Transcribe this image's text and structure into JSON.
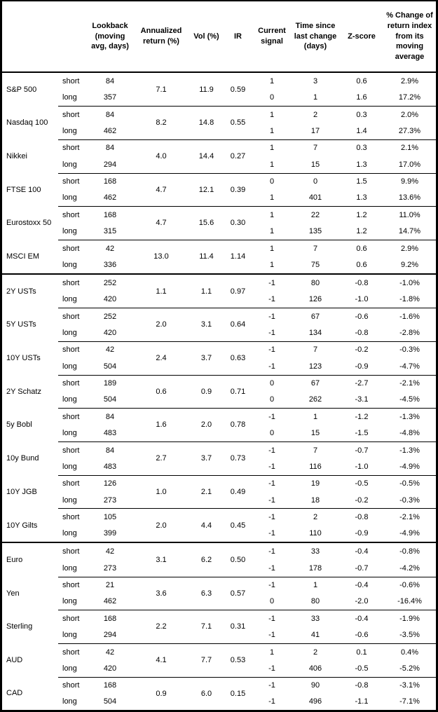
{
  "table": {
    "headers": {
      "asset": "",
      "period": "",
      "lookback": "Lookback (moving avg, days)",
      "ann_return": "Annualized return (%)",
      "vol": "Vol (%)",
      "ir": "IR",
      "signal": "Current signal",
      "time": "Time since last change (days)",
      "zscore": "Z-score",
      "chg": "% Change of return index from its moving average"
    },
    "period_labels": {
      "short": "short",
      "long": "long"
    },
    "groups": [
      {
        "name": "S&P 500",
        "section_start": false,
        "ann": "7.1",
        "vol": "11.9",
        "ir": "0.59",
        "short": {
          "lookback": "84",
          "signal": "1",
          "time": "3",
          "z": "0.6",
          "chg": "2.9%"
        },
        "long": {
          "lookback": "357",
          "signal": "0",
          "time": "1",
          "z": "1.6",
          "chg": "17.2%"
        }
      },
      {
        "name": "Nasdaq 100",
        "section_start": false,
        "ann": "8.2",
        "vol": "14.8",
        "ir": "0.55",
        "short": {
          "lookback": "84",
          "signal": "1",
          "time": "2",
          "z": "0.3",
          "chg": "2.0%"
        },
        "long": {
          "lookback": "462",
          "signal": "1",
          "time": "17",
          "z": "1.4",
          "chg": "27.3%"
        }
      },
      {
        "name": "Nikkei",
        "section_start": false,
        "ann": "4.0",
        "vol": "14.4",
        "ir": "0.27",
        "short": {
          "lookback": "84",
          "signal": "1",
          "time": "7",
          "z": "0.3",
          "chg": "2.1%"
        },
        "long": {
          "lookback": "294",
          "signal": "1",
          "time": "15",
          "z": "1.3",
          "chg": "17.0%"
        }
      },
      {
        "name": "FTSE 100",
        "section_start": false,
        "ann": "4.7",
        "vol": "12.1",
        "ir": "0.39",
        "short": {
          "lookback": "168",
          "signal": "0",
          "time": "0",
          "z": "1.5",
          "chg": "9.9%"
        },
        "long": {
          "lookback": "462",
          "signal": "1",
          "time": "401",
          "z": "1.3",
          "chg": "13.6%"
        }
      },
      {
        "name": "Eurostoxx 50",
        "section_start": false,
        "ann": "4.7",
        "vol": "15.6",
        "ir": "0.30",
        "short": {
          "lookback": "168",
          "signal": "1",
          "time": "22",
          "z": "1.2",
          "chg": "11.0%"
        },
        "long": {
          "lookback": "315",
          "signal": "1",
          "time": "135",
          "z": "1.2",
          "chg": "14.7%"
        }
      },
      {
        "name": "MSCI EM",
        "section_start": false,
        "ann": "13.0",
        "vol": "11.4",
        "ir": "1.14",
        "short": {
          "lookback": "42",
          "signal": "1",
          "time": "7",
          "z": "0.6",
          "chg": "2.9%"
        },
        "long": {
          "lookback": "336",
          "signal": "1",
          "time": "75",
          "z": "0.6",
          "chg": "9.2%"
        }
      },
      {
        "name": "2Y USTs",
        "section_start": true,
        "ann": "1.1",
        "vol": "1.1",
        "ir": "0.97",
        "short": {
          "lookback": "252",
          "signal": "-1",
          "time": "80",
          "z": "-0.8",
          "chg": "-1.0%"
        },
        "long": {
          "lookback": "420",
          "signal": "-1",
          "time": "126",
          "z": "-1.0",
          "chg": "-1.8%"
        }
      },
      {
        "name": "5Y USTs",
        "section_start": false,
        "ann": "2.0",
        "vol": "3.1",
        "ir": "0.64",
        "short": {
          "lookback": "252",
          "signal": "-1",
          "time": "67",
          "z": "-0.6",
          "chg": "-1.6%"
        },
        "long": {
          "lookback": "420",
          "signal": "-1",
          "time": "134",
          "z": "-0.8",
          "chg": "-2.8%"
        }
      },
      {
        "name": "10Y USTs",
        "section_start": false,
        "ann": "2.4",
        "vol": "3.7",
        "ir": "0.63",
        "short": {
          "lookback": "42",
          "signal": "-1",
          "time": "7",
          "z": "-0.2",
          "chg": "-0.3%"
        },
        "long": {
          "lookback": "504",
          "signal": "-1",
          "time": "123",
          "z": "-0.9",
          "chg": "-4.7%"
        }
      },
      {
        "name": "2Y Schatz",
        "section_start": false,
        "ann": "0.6",
        "vol": "0.9",
        "ir": "0.71",
        "short": {
          "lookback": "189",
          "signal": "0",
          "time": "67",
          "z": "-2.7",
          "chg": "-2.1%"
        },
        "long": {
          "lookback": "504",
          "signal": "0",
          "time": "262",
          "z": "-3.1",
          "chg": "-4.5%"
        }
      },
      {
        "name": "5y Bobl",
        "section_start": false,
        "ann": "1.6",
        "vol": "2.0",
        "ir": "0.78",
        "short": {
          "lookback": "84",
          "signal": "-1",
          "time": "1",
          "z": "-1.2",
          "chg": "-1.3%"
        },
        "long": {
          "lookback": "483",
          "signal": "0",
          "time": "15",
          "z": "-1.5",
          "chg": "-4.8%"
        }
      },
      {
        "name": "10y Bund",
        "section_start": false,
        "ann": "2.7",
        "vol": "3.7",
        "ir": "0.73",
        "short": {
          "lookback": "84",
          "signal": "-1",
          "time": "7",
          "z": "-0.7",
          "chg": "-1.3%"
        },
        "long": {
          "lookback": "483",
          "signal": "-1",
          "time": "116",
          "z": "-1.0",
          "chg": "-4.9%"
        }
      },
      {
        "name": "10Y JGB",
        "section_start": false,
        "ann": "1.0",
        "vol": "2.1",
        "ir": "0.49",
        "short": {
          "lookback": "126",
          "signal": "-1",
          "time": "19",
          "z": "-0.5",
          "chg": "-0.5%"
        },
        "long": {
          "lookback": "273",
          "signal": "-1",
          "time": "18",
          "z": "-0.2",
          "chg": "-0.3%"
        }
      },
      {
        "name": "10Y Gilts",
        "section_start": false,
        "ann": "2.0",
        "vol": "4.4",
        "ir": "0.45",
        "short": {
          "lookback": "105",
          "signal": "-1",
          "time": "2",
          "z": "-0.8",
          "chg": "-2.1%"
        },
        "long": {
          "lookback": "399",
          "signal": "-1",
          "time": "110",
          "z": "-0.9",
          "chg": "-4.9%"
        }
      },
      {
        "name": "Euro",
        "section_start": true,
        "ann": "3.1",
        "vol": "6.2",
        "ir": "0.50",
        "short": {
          "lookback": "42",
          "signal": "-1",
          "time": "33",
          "z": "-0.4",
          "chg": "-0.8%"
        },
        "long": {
          "lookback": "273",
          "signal": "-1",
          "time": "178",
          "z": "-0.7",
          "chg": "-4.2%"
        }
      },
      {
        "name": "Yen",
        "section_start": false,
        "ann": "3.6",
        "vol": "6.3",
        "ir": "0.57",
        "short": {
          "lookback": "21",
          "signal": "-1",
          "time": "1",
          "z": "-0.4",
          "chg": "-0.6%"
        },
        "long": {
          "lookback": "462",
          "signal": "0",
          "time": "80",
          "z": "-2.0",
          "chg": "-16.4%"
        }
      },
      {
        "name": "Sterling",
        "section_start": false,
        "ann": "2.2",
        "vol": "7.1",
        "ir": "0.31",
        "short": {
          "lookback": "168",
          "signal": "-1",
          "time": "33",
          "z": "-0.4",
          "chg": "-1.9%"
        },
        "long": {
          "lookback": "294",
          "signal": "-1",
          "time": "41",
          "z": "-0.6",
          "chg": "-3.5%"
        }
      },
      {
        "name": "AUD",
        "section_start": false,
        "ann": "4.1",
        "vol": "7.7",
        "ir": "0.53",
        "short": {
          "lookback": "42",
          "signal": "1",
          "time": "2",
          "z": "0.1",
          "chg": "0.4%"
        },
        "long": {
          "lookback": "420",
          "signal": "-1",
          "time": "406",
          "z": "-0.5",
          "chg": "-5.2%"
        }
      },
      {
        "name": "CAD",
        "section_start": false,
        "ann": "0.9",
        "vol": "6.0",
        "ir": "0.15",
        "short": {
          "lookback": "168",
          "signal": "-1",
          "time": "90",
          "z": "-0.8",
          "chg": "-3.1%"
        },
        "long": {
          "lookback": "504",
          "signal": "-1",
          "time": "496",
          "z": "-1.1",
          "chg": "-7.1%"
        }
      }
    ]
  }
}
